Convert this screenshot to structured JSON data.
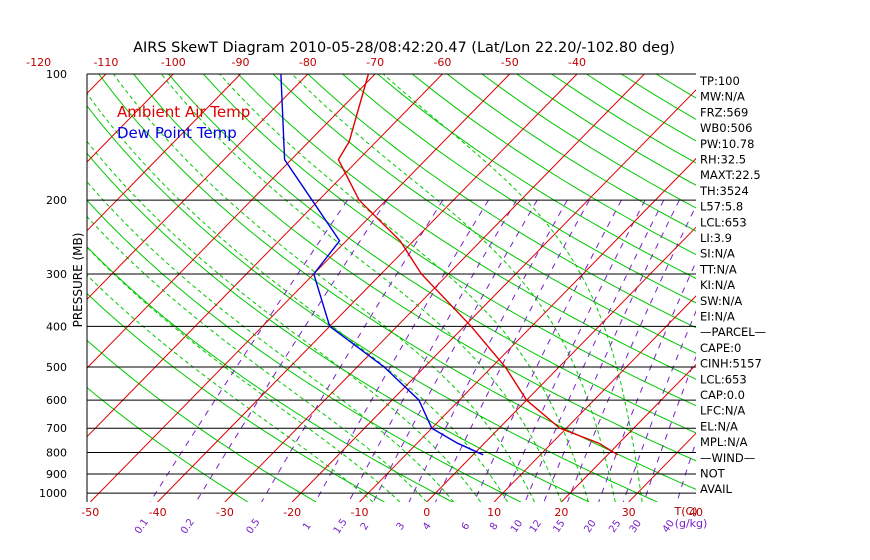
{
  "chart_data": {
    "type": "line",
    "title": "AIRS SkewT Diagram 2010-05-28/08:42:20.47 (Lat/Lon 22.20/-102.80 deg)",
    "ylabel": "PRESSURE (MB)",
    "y_scale": "log",
    "ylim": [
      1000,
      100
    ],
    "pressure_ticks": [
      {
        "label": "100",
        "p": 100
      },
      {
        "label": "200",
        "p": 200
      },
      {
        "label": "300",
        "p": 300
      },
      {
        "label": "400",
        "p": 400
      },
      {
        "label": "500",
        "p": 500
      },
      {
        "label": "600",
        "p": 600
      },
      {
        "label": "700",
        "p": 700
      },
      {
        "label": "800",
        "p": 800
      },
      {
        "label": "900",
        "p": 900
      },
      {
        "label": "1000",
        "p": 1000
      }
    ],
    "temperature_range_at_surface": [
      -50,
      40
    ],
    "bottom_temp_ticks": [
      "-50",
      "-40",
      "-30",
      "-20",
      "-10",
      "0",
      "10",
      "20",
      "30",
      "40"
    ],
    "bottom_temp_unit": "T(C)",
    "top_temp_ticks": [
      "-120",
      "-110",
      "-100",
      "-90",
      "-80",
      "-70",
      "-60",
      "-50",
      "-40"
    ],
    "mixing_ratio_ticks": [
      "0.1",
      "0.2",
      "0.5",
      "1",
      "1.5",
      "2",
      "3",
      "4",
      "6",
      "8",
      "10",
      "12",
      "15",
      "20",
      "25",
      "30",
      "40"
    ],
    "mixing_ratio_unit": "(g/kg)",
    "legend": [
      {
        "label": "Ambient Air Temp",
        "color": "#e00000"
      },
      {
        "label": "Dew Point Temp",
        "color": "#0000e0"
      }
    ],
    "series": [
      {
        "name": "Ambient Air Temp",
        "color": "#e00000",
        "points": [
          {
            "p": 810,
            "t": 21.5
          },
          {
            "p": 760,
            "t": 17
          },
          {
            "p": 700,
            "t": 9
          },
          {
            "p": 600,
            "t": 0
          },
          {
            "p": 500,
            "t": -8
          },
          {
            "p": 400,
            "t": -19
          },
          {
            "p": 300,
            "t": -34
          },
          {
            "p": 250,
            "t": -42
          },
          {
            "p": 200,
            "t": -54
          },
          {
            "p": 160,
            "t": -63
          },
          {
            "p": 145,
            "t": -64
          },
          {
            "p": 100,
            "t": -71
          }
        ]
      },
      {
        "name": "Dew Point Temp",
        "color": "#0000e0",
        "points": [
          {
            "p": 810,
            "t": 1.5
          },
          {
            "p": 760,
            "t": -4
          },
          {
            "p": 700,
            "t": -10
          },
          {
            "p": 600,
            "t": -16
          },
          {
            "p": 500,
            "t": -26
          },
          {
            "p": 400,
            "t": -40
          },
          {
            "p": 300,
            "t": -50
          },
          {
            "p": 250,
            "t": -51
          },
          {
            "p": 200,
            "t": -61
          },
          {
            "p": 160,
            "t": -71
          },
          {
            "p": 100,
            "t": -84
          }
        ]
      }
    ],
    "stats": [
      "TP:100",
      "MW:N/A",
      "FRZ:569",
      "WB0:506",
      "PW:10.78",
      "RH:32.5",
      "MAXT:22.5",
      "TH:3524",
      "L57:5.8",
      "LCL:653",
      "LI:3.9",
      "SI:N/A",
      "TT:N/A",
      "KI:N/A",
      "SW:N/A",
      "EI:N/A",
      "—PARCEL—",
      "CAPE:0",
      "CINH:5157",
      "LCL:653",
      "CAP:0.0",
      "LFC:N/A",
      "EL:N/A",
      "MPL:N/A",
      "—WIND—",
      "NOT",
      "AVAIL"
    ],
    "colors": {
      "isotherm": "#e00000",
      "dry_adiabat": "#00c800",
      "moist_adiabat": "#00c800",
      "mixing_ratio": "#7a20c8",
      "isobar": "#000000"
    }
  }
}
